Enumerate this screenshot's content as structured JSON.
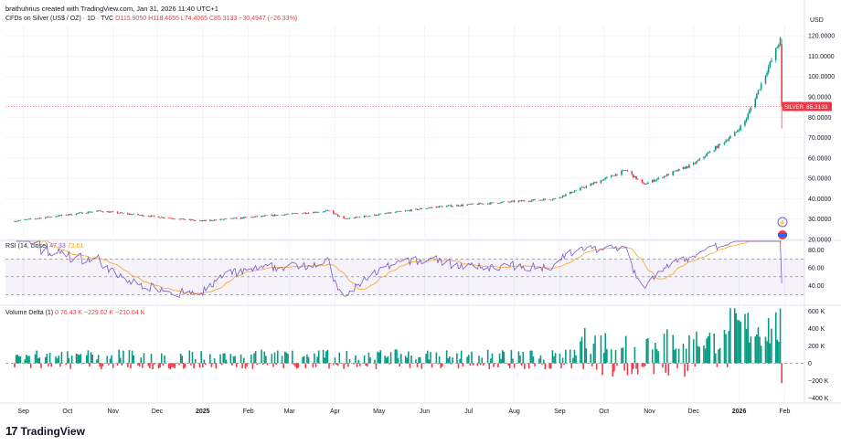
{
  "header": {
    "attribution": "brathuhrius created with TradingView.com, Jan 31, 2026 11:40 UTC+1"
  },
  "legend": {
    "symbol": "CFDs on Silver (US$ / OZ) · 1D · TVC",
    "open": "O115.9050",
    "high": "H118.4655",
    "low": "L74.4065",
    "close": "C85.3133",
    "change": "−30.4947 (−26.33%)"
  },
  "price_axis": {
    "currency": "USD",
    "ticks": [
      "120.0000",
      "110.0000",
      "100.0000",
      "90.0000",
      "80.0000",
      "70.0000",
      "60.0000",
      "50.0000",
      "40.0000",
      "30.0000",
      "20.0000"
    ],
    "last_label": "SILVER",
    "last_value": "85.3133"
  },
  "rsi": {
    "label": "RSI (14, close)",
    "value1": "47.33",
    "value2": "73.61",
    "ticks": [
      "80.00",
      "60.00",
      "40.00"
    ]
  },
  "volume_delta": {
    "label": "Volume Delta (1)",
    "v0": "0",
    "v1": "76.43 K",
    "v2": "−229.02 K",
    "v3": "−210.04 K",
    "ticks": [
      "600 K",
      "400 K",
      "200 K",
      "0",
      "−200 K",
      "−400 K"
    ]
  },
  "time_axis": [
    "Sep",
    "Oct",
    "Nov",
    "Dec",
    "2025",
    "Feb",
    "Mar",
    "Apr",
    "May",
    "Jun",
    "Jul",
    "Aug",
    "Sep",
    "Oct",
    "Nov",
    "Dec",
    "2026",
    "Feb"
  ],
  "footer": {
    "brand": "TradingView",
    "logo": "17"
  },
  "colors": {
    "up": "#089981",
    "down": "#f23645",
    "rsi": "#7e57c2",
    "rsi_ma": "#f5a623",
    "grid": "#f0f3fa"
  },
  "chart_data": {
    "type": "candlestick",
    "price_ylim": [
      20,
      125
    ],
    "price_path_x": [
      "2024-08-26",
      "2024-10-22",
      "2024-12-31",
      "2025-03-28",
      "2025-04-07",
      "2025-06-09",
      "2025-08-29",
      "2025-10-16",
      "2025-10-28",
      "2025-12-01",
      "2025-12-29",
      "2026-01-05",
      "2026-01-29",
      "2026-01-30"
    ],
    "price_path_y": [
      29,
      34,
      29,
      34,
      30,
      36,
      40,
      54,
      47,
      57,
      72,
      78,
      118,
      85.3
    ],
    "rsi_levels": [
      70,
      50,
      30
    ],
    "rsi_ylim": [
      20,
      90
    ],
    "volume_ylim": [
      -450,
      650
    ]
  }
}
